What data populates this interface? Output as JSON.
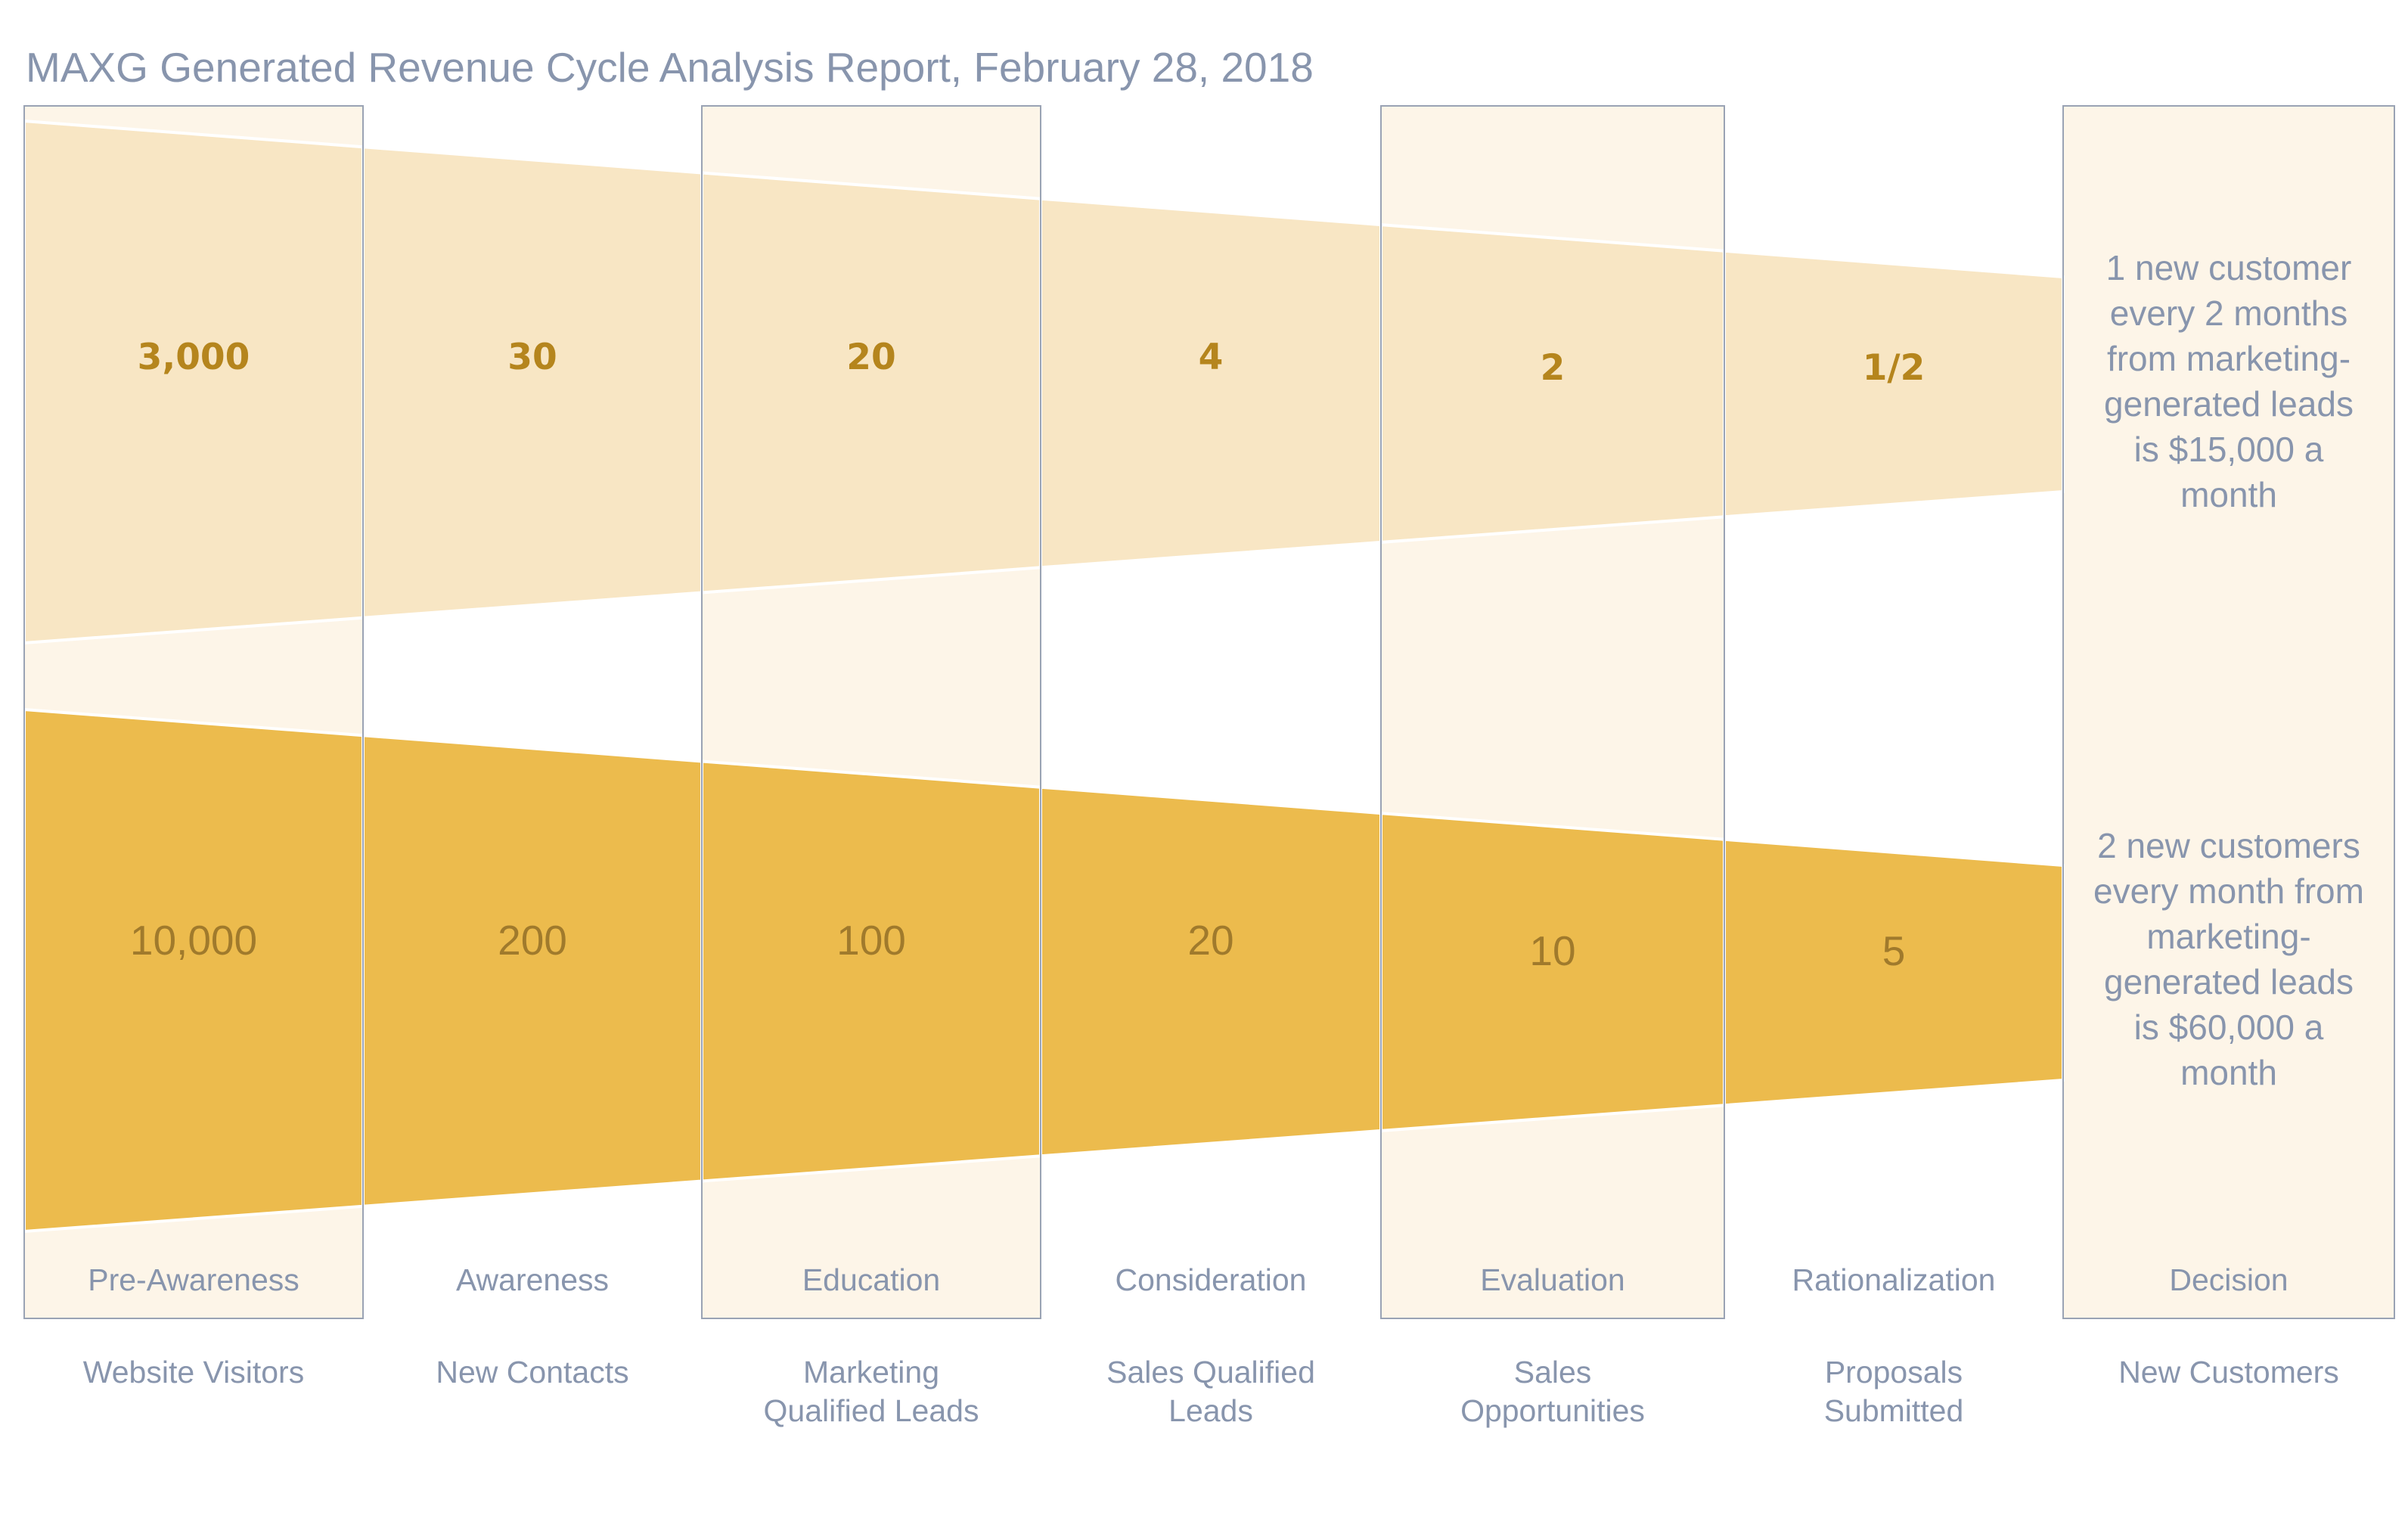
{
  "title": "MAXG Generated Revenue Cycle Analysis Report, February 28, 2018",
  "colors": {
    "highlight_column": "#fdf5e8",
    "column_border": "#9aa3b4",
    "top_funnel": "#f8e6c4",
    "bottom_funnel": "#ecbb4d",
    "label_text": "#8895ad",
    "top_value_text": "#b5851d",
    "bottom_value_text": "#a07a2c"
  },
  "stages": [
    {
      "stage": "Pre-Awareness",
      "metric": [
        "Website Visitors"
      ],
      "top_value": "3,000",
      "bottom_value": "10,000",
      "highlighted": true
    },
    {
      "stage": "Awareness",
      "metric": [
        "New Contacts"
      ],
      "top_value": "30",
      "bottom_value": "200",
      "highlighted": false
    },
    {
      "stage": "Education",
      "metric": [
        "Marketing",
        "Qualified Leads"
      ],
      "top_value": "20",
      "bottom_value": "100",
      "highlighted": true
    },
    {
      "stage": "Consideration",
      "metric": [
        "Sales Qualified",
        "Leads"
      ],
      "top_value": "4",
      "bottom_value": "20",
      "highlighted": false
    },
    {
      "stage": "Evaluation",
      "metric": [
        "Sales",
        "Opportunities"
      ],
      "top_value": "2",
      "bottom_value": "10",
      "highlighted": true
    },
    {
      "stage": "Rationalization",
      "metric": [
        "Proposals",
        "Submitted"
      ],
      "top_value": "1/2",
      "bottom_value": "5",
      "highlighted": false
    },
    {
      "stage": "Decision",
      "metric": [
        "New Customers"
      ],
      "highlighted": true
    }
  ],
  "summaries": {
    "top": [
      "1 new customer",
      "every 2 months",
      "from marketing-",
      "generated leads",
      "is $15,000 a",
      "month"
    ],
    "bottom": [
      "2 new customers",
      "every month from",
      "marketing-",
      "generated leads",
      "is $60,000 a",
      "month"
    ]
  }
}
